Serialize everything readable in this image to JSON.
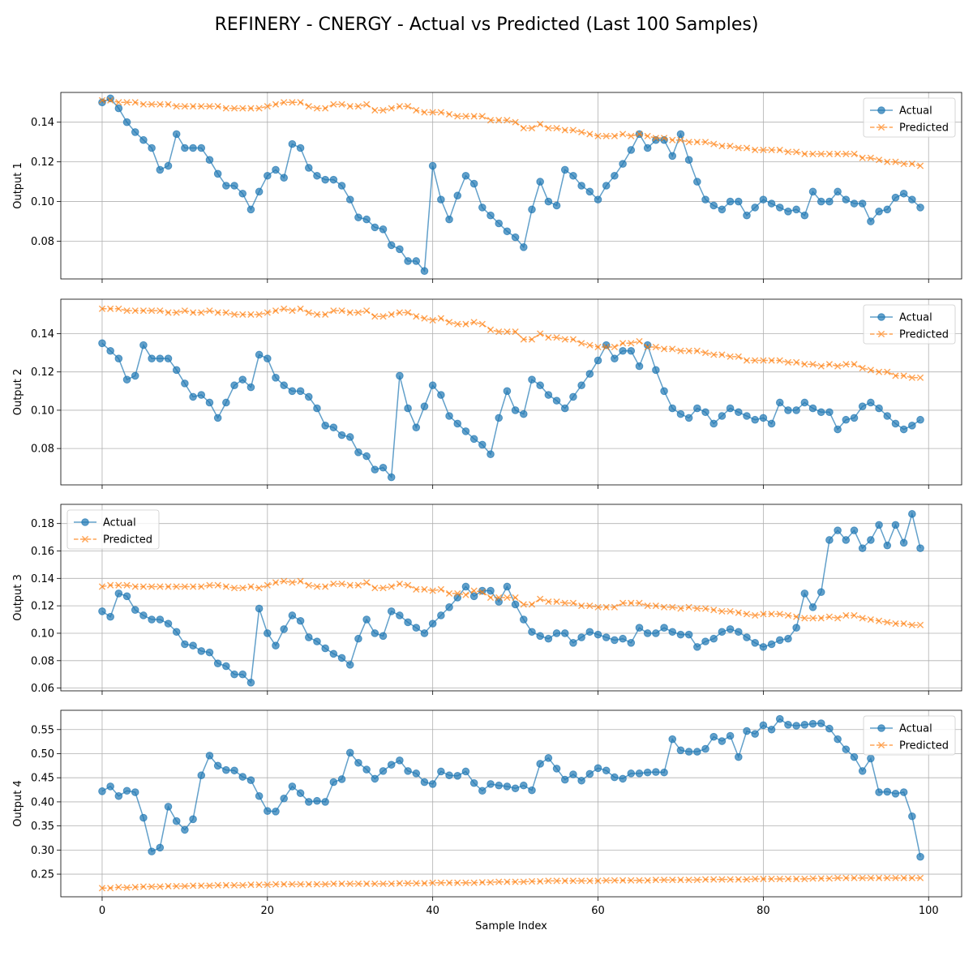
{
  "figure": {
    "title": "REFINERY - CNERGY - Actual vs Predicted (Last 100 Samples)",
    "xlabel": "Sample Index"
  },
  "colors": {
    "actual": "#1f77b4",
    "predicted": "#ff7f0e",
    "grid": "#b0b0b0",
    "axis": "#000000"
  },
  "chart_data": [
    {
      "type": "line",
      "ylabel": "Output 1",
      "ylim": [
        0.061,
        0.155
      ],
      "yticks": [
        0.08,
        0.1,
        0.12,
        0.14
      ],
      "xlim": [
        -5,
        104
      ],
      "xticks": [
        0,
        20,
        40,
        60,
        80,
        100
      ],
      "legend": "upper right",
      "grid": true,
      "series": [
        {
          "name": "Actual",
          "marker": "o",
          "values": [
            0.15,
            0.152,
            0.147,
            0.14,
            0.135,
            0.131,
            0.127,
            0.116,
            0.118,
            0.134,
            0.127,
            0.127,
            0.127,
            0.121,
            0.114,
            0.108,
            0.108,
            0.104,
            0.096,
            0.105,
            0.113,
            0.116,
            0.112,
            0.129,
            0.127,
            0.117,
            0.113,
            0.111,
            0.111,
            0.108,
            0.101,
            0.092,
            0.091,
            0.087,
            0.086,
            0.078,
            0.076,
            0.07,
            0.07,
            0.065,
            0.118,
            0.101,
            0.091,
            0.103,
            0.113,
            0.109,
            0.097,
            0.093,
            0.089,
            0.085,
            0.082,
            0.077,
            0.096,
            0.11,
            0.1,
            0.098,
            0.116,
            0.113,
            0.108,
            0.105,
            0.101,
            0.108,
            0.113,
            0.119,
            0.126,
            0.134,
            0.127,
            0.131,
            0.131,
            0.123,
            0.134,
            0.121,
            0.11,
            0.101,
            0.098,
            0.096,
            0.1,
            0.1,
            0.093,
            0.097,
            0.101,
            0.099,
            0.097,
            0.095,
            0.096,
            0.093,
            0.105,
            0.1,
            0.1,
            0.105,
            0.101,
            0.099,
            0.099,
            0.09,
            0.095,
            0.096,
            0.102,
            0.104,
            0.101,
            0.097
          ]
        },
        {
          "name": "Predicted",
          "marker": "x",
          "values": [
            0.151,
            0.151,
            0.15,
            0.15,
            0.15,
            0.149,
            0.149,
            0.149,
            0.149,
            0.148,
            0.148,
            0.148,
            0.148,
            0.148,
            0.148,
            0.147,
            0.147,
            0.147,
            0.147,
            0.147,
            0.148,
            0.149,
            0.15,
            0.15,
            0.15,
            0.148,
            0.147,
            0.147,
            0.149,
            0.149,
            0.148,
            0.148,
            0.149,
            0.146,
            0.146,
            0.147,
            0.148,
            0.148,
            0.146,
            0.145,
            0.145,
            0.145,
            0.144,
            0.143,
            0.143,
            0.143,
            0.143,
            0.141,
            0.141,
            0.141,
            0.14,
            0.137,
            0.137,
            0.139,
            0.137,
            0.137,
            0.136,
            0.136,
            0.135,
            0.134,
            0.133,
            0.133,
            0.133,
            0.134,
            0.133,
            0.134,
            0.133,
            0.132,
            0.132,
            0.131,
            0.131,
            0.13,
            0.13,
            0.13,
            0.129,
            0.128,
            0.128,
            0.127,
            0.127,
            0.126,
            0.126,
            0.126,
            0.126,
            0.125,
            0.125,
            0.124,
            0.124,
            0.124,
            0.124,
            0.124,
            0.124,
            0.124,
            0.122,
            0.122,
            0.121,
            0.12,
            0.12,
            0.119,
            0.119,
            0.118
          ]
        }
      ]
    },
    {
      "type": "line",
      "ylabel": "Output 2",
      "ylim": [
        0.061,
        0.158
      ],
      "yticks": [
        0.08,
        0.1,
        0.12,
        0.14
      ],
      "xlim": [
        -5,
        104
      ],
      "xticks": [
        0,
        20,
        40,
        60,
        80,
        100
      ],
      "legend": "upper right",
      "grid": true,
      "series": [
        {
          "name": "Actual",
          "marker": "o",
          "values": [
            0.135,
            0.131,
            0.127,
            0.116,
            0.118,
            0.134,
            0.127,
            0.127,
            0.127,
            0.121,
            0.114,
            0.107,
            0.108,
            0.104,
            0.096,
            0.104,
            0.113,
            0.116,
            0.112,
            0.129,
            0.127,
            0.117,
            0.113,
            0.11,
            0.11,
            0.107,
            0.101,
            0.092,
            0.091,
            0.087,
            0.086,
            0.078,
            0.076,
            0.069,
            0.07,
            0.065,
            0.118,
            0.101,
            0.091,
            0.102,
            0.113,
            0.108,
            0.097,
            0.093,
            0.089,
            0.085,
            0.082,
            0.077,
            0.096,
            0.11,
            0.1,
            0.098,
            0.116,
            0.113,
            0.108,
            0.105,
            0.101,
            0.107,
            0.113,
            0.119,
            0.126,
            0.134,
            0.127,
            0.131,
            0.131,
            0.123,
            0.134,
            0.121,
            0.11,
            0.101,
            0.098,
            0.096,
            0.101,
            0.099,
            0.093,
            0.097,
            0.101,
            0.099,
            0.097,
            0.095,
            0.096,
            0.093,
            0.104,
            0.1,
            0.1,
            0.104,
            0.101,
            0.099,
            0.099,
            0.09,
            0.095,
            0.096,
            0.102,
            0.104,
            0.101,
            0.097,
            0.093,
            0.09,
            0.092,
            0.095
          ]
        },
        {
          "name": "Predicted",
          "marker": "x",
          "values": [
            0.153,
            0.153,
            0.153,
            0.152,
            0.152,
            0.152,
            0.152,
            0.152,
            0.151,
            0.151,
            0.152,
            0.151,
            0.151,
            0.152,
            0.151,
            0.151,
            0.15,
            0.15,
            0.15,
            0.15,
            0.151,
            0.152,
            0.153,
            0.152,
            0.153,
            0.151,
            0.15,
            0.15,
            0.152,
            0.152,
            0.151,
            0.151,
            0.152,
            0.149,
            0.149,
            0.15,
            0.151,
            0.151,
            0.149,
            0.148,
            0.147,
            0.148,
            0.146,
            0.145,
            0.145,
            0.146,
            0.145,
            0.142,
            0.141,
            0.141,
            0.141,
            0.137,
            0.137,
            0.14,
            0.138,
            0.138,
            0.137,
            0.137,
            0.135,
            0.134,
            0.133,
            0.133,
            0.133,
            0.135,
            0.135,
            0.136,
            0.133,
            0.133,
            0.132,
            0.132,
            0.131,
            0.131,
            0.131,
            0.13,
            0.129,
            0.129,
            0.128,
            0.128,
            0.126,
            0.126,
            0.126,
            0.126,
            0.126,
            0.125,
            0.125,
            0.124,
            0.124,
            0.123,
            0.124,
            0.123,
            0.124,
            0.124,
            0.122,
            0.121,
            0.12,
            0.12,
            0.118,
            0.118,
            0.117,
            0.117
          ]
        }
      ]
    },
    {
      "type": "line",
      "ylabel": "Output 3",
      "ylim": [
        0.058,
        0.194
      ],
      "yticks": [
        0.06,
        0.08,
        0.1,
        0.12,
        0.14,
        0.16,
        0.18
      ],
      "xlim": [
        -5,
        104
      ],
      "xticks": [
        0,
        20,
        40,
        60,
        80,
        100
      ],
      "legend": "upper left",
      "grid": true,
      "series": [
        {
          "name": "Actual",
          "marker": "o",
          "values": [
            0.116,
            0.112,
            0.129,
            0.127,
            0.117,
            0.113,
            0.11,
            0.11,
            0.107,
            0.101,
            0.092,
            0.091,
            0.087,
            0.086,
            0.078,
            0.076,
            0.07,
            0.07,
            0.064,
            0.118,
            0.1,
            0.091,
            0.103,
            0.113,
            0.109,
            0.097,
            0.094,
            0.089,
            0.085,
            0.082,
            0.077,
            0.096,
            0.11,
            0.1,
            0.098,
            0.116,
            0.113,
            0.108,
            0.104,
            0.1,
            0.107,
            0.113,
            0.119,
            0.126,
            0.134,
            0.127,
            0.131,
            0.131,
            0.123,
            0.134,
            0.121,
            0.11,
            0.101,
            0.098,
            0.096,
            0.1,
            0.1,
            0.093,
            0.097,
            0.101,
            0.099,
            0.097,
            0.095,
            0.096,
            0.093,
            0.104,
            0.1,
            0.1,
            0.104,
            0.101,
            0.099,
            0.099,
            0.09,
            0.094,
            0.096,
            0.101,
            0.103,
            0.101,
            0.097,
            0.093,
            0.09,
            0.092,
            0.095,
            0.096,
            0.104,
            0.129,
            0.119,
            0.13,
            0.168,
            0.175,
            0.168,
            0.175,
            0.162,
            0.168,
            0.179,
            0.164,
            0.179,
            0.166,
            0.187,
            0.162
          ]
        },
        {
          "name": "Predicted",
          "marker": "x",
          "values": [
            0.134,
            0.135,
            0.135,
            0.135,
            0.134,
            0.134,
            0.134,
            0.134,
            0.134,
            0.134,
            0.134,
            0.134,
            0.134,
            0.135,
            0.135,
            0.134,
            0.133,
            0.133,
            0.134,
            0.133,
            0.135,
            0.137,
            0.138,
            0.137,
            0.138,
            0.135,
            0.134,
            0.134,
            0.136,
            0.136,
            0.135,
            0.135,
            0.137,
            0.133,
            0.133,
            0.134,
            0.136,
            0.135,
            0.132,
            0.132,
            0.131,
            0.132,
            0.129,
            0.129,
            0.128,
            0.131,
            0.13,
            0.126,
            0.126,
            0.126,
            0.126,
            0.121,
            0.121,
            0.125,
            0.123,
            0.123,
            0.122,
            0.122,
            0.12,
            0.12,
            0.119,
            0.119,
            0.119,
            0.122,
            0.122,
            0.122,
            0.12,
            0.12,
            0.119,
            0.119,
            0.118,
            0.119,
            0.118,
            0.118,
            0.117,
            0.116,
            0.116,
            0.115,
            0.114,
            0.113,
            0.114,
            0.114,
            0.114,
            0.113,
            0.112,
            0.111,
            0.111,
            0.111,
            0.112,
            0.111,
            0.113,
            0.113,
            0.111,
            0.11,
            0.109,
            0.108,
            0.107,
            0.107,
            0.106,
            0.106
          ]
        }
      ]
    },
    {
      "type": "line",
      "ylabel": "Output 4",
      "ylim": [
        0.203,
        0.59
      ],
      "yticks": [
        0.25,
        0.3,
        0.35,
        0.4,
        0.45,
        0.5,
        0.55
      ],
      "xlim": [
        -5,
        104
      ],
      "xticks": [
        0,
        20,
        40,
        60,
        80,
        100
      ],
      "legend": "upper right",
      "grid": true,
      "series": [
        {
          "name": "Actual",
          "marker": "o",
          "values": [
            0.422,
            0.432,
            0.412,
            0.423,
            0.42,
            0.367,
            0.297,
            0.305,
            0.39,
            0.36,
            0.342,
            0.364,
            0.455,
            0.496,
            0.475,
            0.466,
            0.465,
            0.452,
            0.445,
            0.412,
            0.381,
            0.38,
            0.407,
            0.432,
            0.418,
            0.4,
            0.402,
            0.4,
            0.441,
            0.447,
            0.502,
            0.481,
            0.467,
            0.448,
            0.464,
            0.477,
            0.486,
            0.464,
            0.459,
            0.441,
            0.437,
            0.463,
            0.455,
            0.454,
            0.463,
            0.439,
            0.423,
            0.437,
            0.434,
            0.432,
            0.428,
            0.434,
            0.424,
            0.479,
            0.491,
            0.469,
            0.446,
            0.457,
            0.444,
            0.458,
            0.47,
            0.465,
            0.451,
            0.448,
            0.459,
            0.459,
            0.461,
            0.462,
            0.461,
            0.53,
            0.507,
            0.504,
            0.504,
            0.51,
            0.535,
            0.526,
            0.537,
            0.493,
            0.547,
            0.541,
            0.559,
            0.55,
            0.572,
            0.56,
            0.558,
            0.56,
            0.562,
            0.563,
            0.552,
            0.53,
            0.509,
            0.493,
            0.464,
            0.49,
            0.42,
            0.421,
            0.417,
            0.42,
            0.37,
            0.286
          ]
        },
        {
          "name": "Predicted",
          "marker": "x",
          "values": [
            0.221,
            0.221,
            0.223,
            0.222,
            0.223,
            0.224,
            0.224,
            0.224,
            0.225,
            0.225,
            0.225,
            0.226,
            0.226,
            0.226,
            0.227,
            0.227,
            0.227,
            0.227,
            0.228,
            0.228,
            0.228,
            0.229,
            0.229,
            0.229,
            0.229,
            0.229,
            0.229,
            0.229,
            0.23,
            0.23,
            0.23,
            0.23,
            0.23,
            0.23,
            0.23,
            0.23,
            0.231,
            0.231,
            0.231,
            0.231,
            0.232,
            0.232,
            0.232,
            0.232,
            0.232,
            0.232,
            0.233,
            0.233,
            0.234,
            0.234,
            0.234,
            0.234,
            0.235,
            0.235,
            0.236,
            0.236,
            0.236,
            0.236,
            0.236,
            0.236,
            0.236,
            0.237,
            0.237,
            0.237,
            0.237,
            0.237,
            0.237,
            0.238,
            0.238,
            0.238,
            0.238,
            0.238,
            0.238,
            0.239,
            0.239,
            0.239,
            0.239,
            0.239,
            0.239,
            0.24,
            0.24,
            0.24,
            0.24,
            0.24,
            0.24,
            0.24,
            0.241,
            0.241,
            0.241,
            0.242,
            0.242,
            0.242,
            0.242,
            0.242,
            0.242,
            0.242,
            0.242,
            0.242,
            0.242,
            0.242
          ]
        }
      ]
    }
  ]
}
